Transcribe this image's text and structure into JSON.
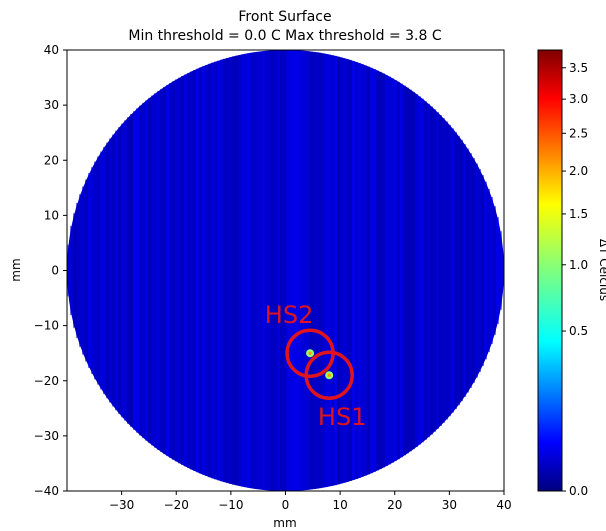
{
  "chart_data": {
    "type": "heatmap",
    "title": "Front Surface",
    "subtitle": "Min threshold = 0.0 C   Max threshold = 3.8 C",
    "xlabel": "mm",
    "ylabel": "mm",
    "xlim": [
      -40,
      40
    ],
    "ylim": [
      -40,
      40
    ],
    "x_ticks": [
      -30,
      -20,
      -10,
      0,
      10,
      20,
      30,
      40
    ],
    "y_ticks": [
      40,
      30,
      20,
      10,
      0,
      -10,
      -20,
      -30,
      -40
    ],
    "colorbar": {
      "label": "ΔT Celcius",
      "colormap": "jet",
      "range": [
        0.0,
        3.8
      ],
      "ticks": [
        0.0,
        0.5,
        1.0,
        1.5,
        2.0,
        2.5,
        3.0,
        3.5
      ],
      "tick_labels": [
        "0.0",
        "0.5",
        "1.0",
        "1.5",
        "2.0",
        "2.5",
        "3.0",
        "3.5"
      ]
    },
    "wafer": {
      "center": [
        0,
        0
      ],
      "radius_mm": 40,
      "typical_delta_t": 0.3
    },
    "hotspots": [
      {
        "name": "HS1",
        "x": 8,
        "y": -19,
        "delta_t": 2.0
      },
      {
        "name": "HS2",
        "x": 4.5,
        "y": -15,
        "delta_t": 2.0
      }
    ]
  }
}
